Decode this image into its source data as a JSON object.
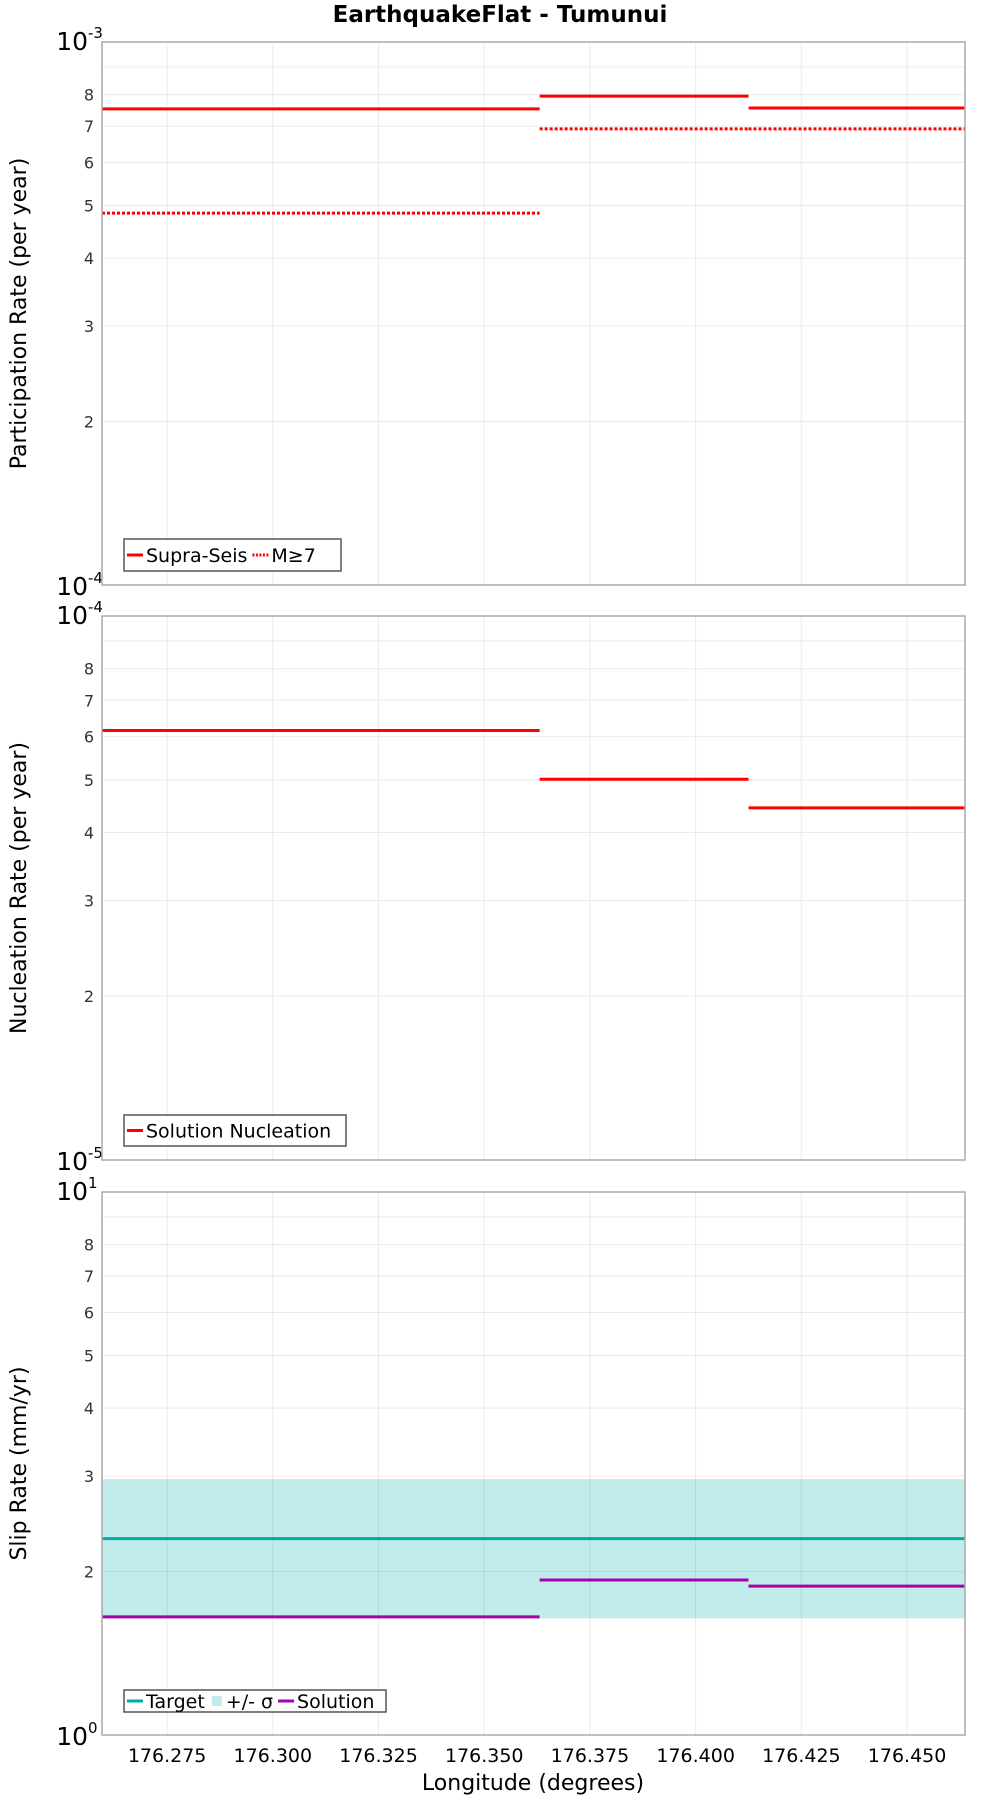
{
  "chart_data": {
    "title": "EarthquakeFlat - Tumunui",
    "xlabel": "Longitude (degrees)",
    "xlim": [
      176.2596,
      176.4637
    ],
    "x_ticks": [
      "176.275",
      "176.300",
      "176.325",
      "176.350",
      "176.375",
      "176.400",
      "176.425",
      "176.450"
    ],
    "x_tick_values": [
      176.275,
      176.3,
      176.325,
      176.35,
      176.375,
      176.4,
      176.425,
      176.45
    ],
    "grid": true,
    "panels": [
      {
        "id": "participation",
        "type": "line",
        "ylabel": "Participation Rate (per year)",
        "yscale": "log",
        "ylim": [
          0.0001,
          0.001
        ],
        "y_decade_labels": [
          {
            "base": "10",
            "exp": "-3",
            "pos": "top"
          },
          {
            "base": "10",
            "exp": "-4",
            "pos": "bottom"
          }
        ],
        "y_minor_labels": [
          "2",
          "3",
          "4",
          "5",
          "6",
          "7",
          "8"
        ],
        "legend_position": "lower left",
        "series": [
          {
            "name": "Supra-Seis",
            "color": "#ff0000",
            "style": "solid",
            "steps": [
              {
                "x0": 176.2596,
                "x1": 176.3631,
                "y": 0.000753
              },
              {
                "x0": 176.3631,
                "x1": 176.4125,
                "y": 0.000795
              },
              {
                "x0": 176.4125,
                "x1": 176.4637,
                "y": 0.000756
              }
            ]
          },
          {
            "name": "M≥7",
            "color": "#ff0000",
            "style": "dotted",
            "steps": [
              {
                "x0": 176.2596,
                "x1": 176.3631,
                "y": 0.000484
              },
              {
                "x0": 176.3631,
                "x1": 176.4125,
                "y": 0.000692
              },
              {
                "x0": 176.4125,
                "x1": 176.4637,
                "y": 0.000692
              }
            ]
          }
        ]
      },
      {
        "id": "nucleation",
        "type": "line",
        "ylabel": "Nucleation Rate (per year)",
        "yscale": "log",
        "ylim": [
          1e-05,
          0.0001
        ],
        "y_decade_labels": [
          {
            "base": "10",
            "exp": "-4",
            "pos": "top"
          },
          {
            "base": "10",
            "exp": "-5",
            "pos": "bottom"
          }
        ],
        "y_minor_labels": [
          "2",
          "3",
          "4",
          "5",
          "6",
          "7",
          "8"
        ],
        "legend_position": "lower left",
        "series": [
          {
            "name": "Solution Nucleation",
            "color": "#ff0000",
            "style": "solid",
            "steps": [
              {
                "x0": 176.2596,
                "x1": 176.3631,
                "y": 6.16e-05
              },
              {
                "x0": 176.3631,
                "x1": 176.4125,
                "y": 5.01e-05
              },
              {
                "x0": 176.4125,
                "x1": 176.4637,
                "y": 4.44e-05
              }
            ]
          }
        ]
      },
      {
        "id": "slip",
        "type": "line",
        "ylabel": "Slip Rate (mm/yr)",
        "yscale": "log",
        "ylim": [
          1,
          10
        ],
        "y_decade_labels": [
          {
            "base": "10",
            "exp": "1",
            "pos": "top"
          },
          {
            "base": "10",
            "exp": "0",
            "pos": "bottom"
          }
        ],
        "y_minor_labels": [
          "2",
          "3",
          "4",
          "5",
          "6",
          "7",
          "8"
        ],
        "legend_position": "lower left",
        "band": {
          "name": "+/- σ",
          "color": "#c2ecec",
          "lower": 1.64,
          "upper": 2.96
        },
        "series": [
          {
            "name": "Target",
            "color": "#00aaaa",
            "style": "solid",
            "steps": [
              {
                "x0": 176.2596,
                "x1": 176.4637,
                "y": 2.3
              }
            ]
          },
          {
            "name": "Solution",
            "color": "#aa00aa",
            "style": "solid",
            "steps": [
              {
                "x0": 176.2596,
                "x1": 176.3631,
                "y": 1.65
              },
              {
                "x0": 176.3631,
                "x1": 176.4125,
                "y": 1.93
              },
              {
                "x0": 176.4125,
                "x1": 176.4637,
                "y": 1.88
              }
            ]
          }
        ],
        "legend_order": [
          "Target",
          "+/- σ",
          "Solution"
        ]
      }
    ]
  },
  "layout_colors": {
    "frame": "#aaaaaa",
    "grid": "#ebebeb",
    "legend_border": "#555555"
  }
}
